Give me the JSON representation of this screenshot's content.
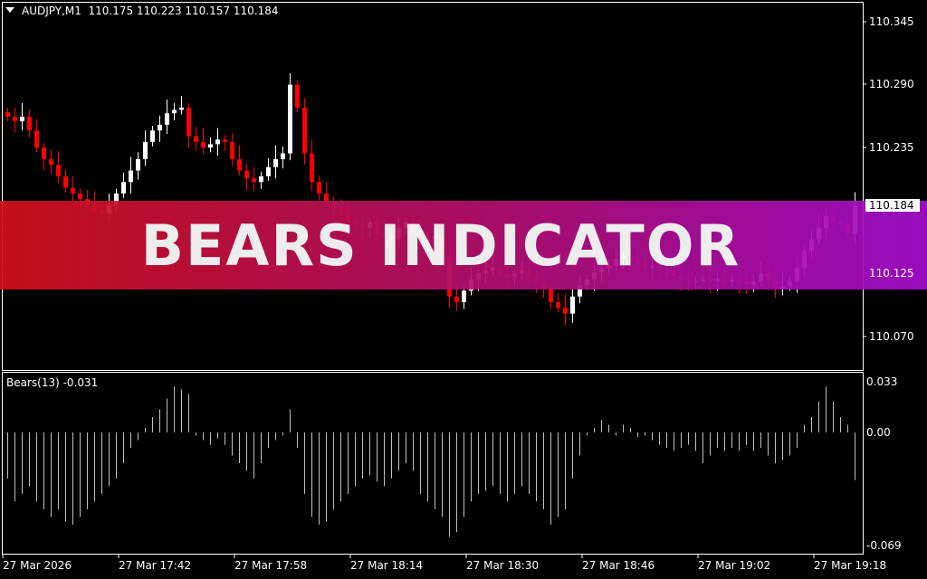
{
  "header": {
    "symbol": "AUDJPY,M1",
    "ohlc": "110.175 110.223 110.157 110.184",
    "menu_icon": "triangle-down-icon"
  },
  "banner": {
    "text": "BEARS INDICATOR"
  },
  "price_axis": {
    "labels": [
      "110.345",
      "110.290",
      "110.235",
      "110.125",
      "110.070"
    ],
    "current": "110.184"
  },
  "indicator": {
    "title": "Bears(13) -0.031",
    "labels": [
      "0.033",
      "0.00",
      "-0.069"
    ]
  },
  "time_axis": {
    "labels": [
      "27 Mar 2026",
      "27 Mar 17:42",
      "27 Mar 17:58",
      "27 Mar 18:14",
      "27 Mar 18:30",
      "27 Mar 18:46",
      "27 Mar 19:02",
      "27 Mar 19:18"
    ]
  },
  "colors": {
    "bull": "#ffffff",
    "bear": "#ff0000",
    "background": "#000000",
    "histogram": "#c0c0c0"
  },
  "chart_data": [
    {
      "type": "candlestick",
      "series": "AUDJPY M1",
      "ylim": [
        110.04,
        110.36
      ],
      "closes": [
        110.262,
        110.258,
        110.262,
        110.25,
        110.235,
        110.225,
        110.22,
        110.21,
        110.2,
        110.195,
        110.19,
        110.185,
        110.18,
        110.178,
        110.185,
        110.195,
        110.205,
        110.215,
        110.225,
        110.24,
        110.25,
        110.255,
        110.265,
        110.268,
        110.27,
        110.245,
        110.24,
        110.235,
        110.238,
        110.242,
        110.24,
        110.225,
        110.215,
        110.208,
        110.205,
        110.21,
        110.218,
        110.225,
        110.23,
        110.29,
        110.27,
        110.23,
        110.205,
        110.195,
        110.188,
        110.182,
        110.175,
        110.17,
        110.168,
        110.165,
        110.17,
        110.16,
        110.158,
        110.155,
        110.165,
        110.17,
        110.16,
        110.15,
        110.155,
        110.158,
        110.14,
        110.105,
        110.1,
        110.11,
        110.12,
        110.125,
        110.128,
        110.13,
        110.125,
        110.122,
        110.125,
        110.128,
        110.122,
        110.118,
        110.112,
        110.1,
        110.095,
        110.09,
        110.105,
        110.115,
        110.12,
        110.126,
        110.13,
        110.132,
        110.138,
        110.14,
        110.136,
        110.134,
        110.13,
        110.132,
        110.128,
        110.125,
        110.123,
        110.12,
        110.118,
        110.118,
        110.12,
        110.118,
        110.12,
        110.118,
        110.12,
        110.118,
        110.115,
        110.118,
        110.125,
        110.12,
        110.112,
        110.114,
        110.118,
        110.13,
        110.145,
        110.155,
        110.165,
        110.175,
        110.17,
        110.168,
        110.16,
        110.184
      ]
    },
    {
      "type": "bar",
      "series": "Bears(13)",
      "ylim": [
        -0.069,
        0.033
      ],
      "values": [
        -0.03,
        -0.045,
        -0.04,
        -0.035,
        -0.045,
        -0.05,
        -0.055,
        -0.05,
        -0.058,
        -0.06,
        -0.055,
        -0.05,
        -0.045,
        -0.04,
        -0.035,
        -0.03,
        -0.02,
        -0.01,
        -0.005,
        0.003,
        0.01,
        0.015,
        0.022,
        0.03,
        0.028,
        0.025,
        -0.002,
        -0.005,
        -0.008,
        -0.004,
        -0.008,
        -0.015,
        -0.02,
        -0.025,
        -0.03,
        -0.02,
        -0.01,
        -0.005,
        -0.002,
        0.015,
        -0.01,
        -0.04,
        -0.055,
        -0.06,
        -0.058,
        -0.05,
        -0.045,
        -0.04,
        -0.035,
        -0.03,
        -0.028,
        -0.032,
        -0.035,
        -0.03,
        -0.025,
        -0.02,
        -0.025,
        -0.04,
        -0.045,
        -0.05,
        -0.055,
        -0.068,
        -0.065,
        -0.055,
        -0.045,
        -0.04,
        -0.038,
        -0.035,
        -0.04,
        -0.045,
        -0.04,
        -0.035,
        -0.04,
        -0.045,
        -0.05,
        -0.06,
        -0.055,
        -0.05,
        -0.03,
        -0.015,
        -0.002,
        0.003,
        0.008,
        0.005,
        -0.002,
        0.005,
        0.003,
        -0.003,
        -0.002,
        -0.005,
        -0.008,
        -0.01,
        -0.012,
        -0.01,
        -0.008,
        -0.012,
        -0.02,
        -0.015,
        -0.01,
        -0.012,
        -0.01,
        -0.012,
        -0.008,
        -0.012,
        -0.01,
        -0.015,
        -0.02,
        -0.018,
        -0.015,
        -0.01,
        0.005,
        0.01,
        0.02,
        0.03,
        0.02,
        0.01,
        0.005,
        -0.031
      ]
    }
  ]
}
